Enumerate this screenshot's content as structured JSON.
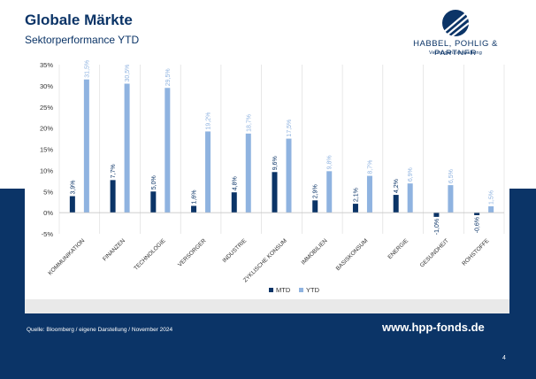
{
  "page": {
    "title": "Globale Märkte",
    "subtitle": "Sektorperformance YTD",
    "source": "Quelle: Bloomberg / eigene Darstellung / November 2024",
    "url": "www.hpp-fonds.de",
    "page_number": "4"
  },
  "logo": {
    "name": "HABBEL, POHLIG & PARTNER",
    "tagline": "Vermögensverwaltung",
    "icon": "hpp-logo-icon"
  },
  "colors": {
    "navy": "#0b3467",
    "mtd": "#0b3467",
    "ytd": "#8fb3e0"
  },
  "chart_data": {
    "type": "bar",
    "categories": [
      "KOMMUNIKATION",
      "FINANZEN",
      "TECHNOLOGIE",
      "VERSORGER",
      "INDUSTRIE",
      "ZYKLISCHE KONSUM",
      "IMMOBILIEN",
      "BASISKONSUM",
      "ENERGIE",
      "GESUNDHEIT",
      "ROHSTOFFE"
    ],
    "series": [
      {
        "name": "MTD",
        "values": [
          3.9,
          7.7,
          5.0,
          1.6,
          4.8,
          9.6,
          2.9,
          2.1,
          4.2,
          -1.0,
          -0.6
        ],
        "labels": [
          "3,9%",
          "7,7%",
          "5,0%",
          "1,6%",
          "4,8%",
          "9,6%",
          "2,9%",
          "2,1%",
          "4,2%",
          "-1,0%",
          "-0,6%"
        ]
      },
      {
        "name": "YTD",
        "values": [
          31.5,
          30.5,
          29.5,
          19.2,
          18.7,
          17.5,
          9.8,
          8.7,
          6.9,
          6.5,
          1.5
        ],
        "labels": [
          "31,5%",
          "30,5%",
          "29,5%",
          "19,2%",
          "18,7%",
          "17,5%",
          "9,8%",
          "8,7%",
          "6,9%",
          "6,5%",
          "1,5%"
        ]
      }
    ],
    "ylim": [
      -5,
      35
    ],
    "yticks": [
      -5,
      0,
      5,
      10,
      15,
      20,
      25,
      30,
      35
    ],
    "ytick_labels": [
      "-5%",
      "0%",
      "5%",
      "10%",
      "15%",
      "20%",
      "25%",
      "30%",
      "35%"
    ],
    "grid": "vertical",
    "legend_position": "bottom",
    "xlabel": "",
    "ylabel": ""
  }
}
